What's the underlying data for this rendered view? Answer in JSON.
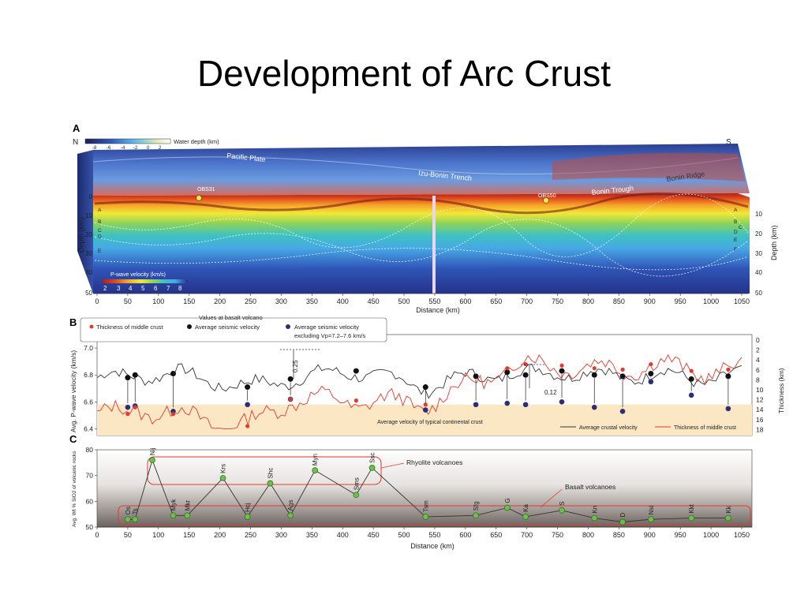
{
  "slide": {
    "title": "Development of Arc Crust"
  },
  "panel_a": {
    "letter": "A",
    "north": "N",
    "south": "S",
    "water_depth_label": "Water depth (km)",
    "water_depth_ticks": [
      "-8",
      "-6",
      "-4",
      "-2",
      "0",
      "2"
    ],
    "features": [
      "Pacific Plate",
      "Izu-Bonin Trench",
      "Bonin Ridge",
      "Bonin Trough",
      "OBS31",
      "OBS50"
    ],
    "layer_labels_left": [
      "A",
      "B",
      "C",
      "D",
      "E"
    ],
    "layer_labels_right": [
      "A",
      "B",
      "C",
      "D",
      "E",
      "F"
    ],
    "depth_label": "Depth (km)",
    "depth_ticks_left": [
      "0",
      "10",
      "20",
      "30",
      "40",
      "50"
    ],
    "depth_ticks_right": [
      "10",
      "20",
      "30",
      "40",
      "50"
    ],
    "velocity_legend_title": "P-wave velocity (km/s)",
    "velocity_ticks": [
      "2",
      "3",
      "4",
      "5",
      "6",
      "7",
      "8"
    ],
    "x_ticks": [
      "0",
      "50",
      "100",
      "150",
      "200",
      "250",
      "300",
      "350",
      "400",
      "450",
      "500",
      "550",
      "600",
      "650",
      "700",
      "750",
      "800",
      "850",
      "900",
      "950",
      "1000",
      "1050"
    ],
    "x_label": "Distance (km)"
  },
  "panel_b": {
    "letter": "B",
    "legend_header": "Values at basalt volcano",
    "legend_items": [
      "Thickness of middle crust",
      "Average seismic velocity",
      "Average seismic velocity",
      "excluding Vp=7.2–7.6 km/s"
    ],
    "y_left_label": "Avg. P-wave velocity (km/s)",
    "y_left_ticks": [
      "6.4",
      "6.6",
      "6.8",
      "7.0"
    ],
    "y_right_label": "Thickness (km)",
    "y_right_ticks": [
      "0",
      "2",
      "4",
      "6",
      "8",
      "10",
      "12",
      "14",
      "16",
      "18"
    ],
    "annotations": [
      "0.25",
      "0.12"
    ],
    "band_label": "Average velocity of typical continental crust",
    "line_legend": [
      "Average crustal velocity",
      "Thickness of middle crust"
    ]
  },
  "panel_c": {
    "letter": "C",
    "y_label": "Avg. Wt % SiO2 of volcanic rocks",
    "y_ticks": [
      "50",
      "60",
      "70",
      "80"
    ],
    "x_ticks": [
      "0",
      "50",
      "100",
      "150",
      "200",
      "250",
      "300",
      "350",
      "400",
      "450",
      "500",
      "550",
      "600",
      "650",
      "700",
      "750",
      "800",
      "850",
      "900",
      "950",
      "1000",
      "1050"
    ],
    "x_label": "Distance (km)",
    "rhyolite_label": "Rhyolite volcanoes",
    "basalt_label": "Basalt volcanoes"
  },
  "chart_data": [
    {
      "type": "line",
      "panel": "C",
      "xlabel": "Distance (km)",
      "ylabel": "Avg. Wt % SiO2 of volcanic rocks",
      "xlim": [
        0,
        1050
      ],
      "ylim": [
        50,
        80
      ],
      "points": [
        {
          "label": "Os",
          "x": 50,
          "y": 53
        },
        {
          "label": "Ts",
          "x": 62,
          "y": 53
        },
        {
          "label": "Nij",
          "x": 90,
          "y": 76
        },
        {
          "label": "Myk",
          "x": 124,
          "y": 54.5
        },
        {
          "label": "Mkr",
          "x": 147,
          "y": 54.5
        },
        {
          "label": "Krs",
          "x": 205,
          "y": 69
        },
        {
          "label": "Hcj",
          "x": 245,
          "y": 54
        },
        {
          "label": "Shc",
          "x": 282,
          "y": 67
        },
        {
          "label": "Ags",
          "x": 315,
          "y": 54.5
        },
        {
          "label": "Myn",
          "x": 355,
          "y": 72
        },
        {
          "label": "Sms",
          "x": 422,
          "y": 62.5
        },
        {
          "label": "Ssc",
          "x": 448,
          "y": 73
        },
        {
          "label": "Tsm",
          "x": 535,
          "y": 54
        },
        {
          "label": "Sfg",
          "x": 617,
          "y": 54.5
        },
        {
          "label": "G",
          "x": 668,
          "y": 57.5
        },
        {
          "label": "Ka",
          "x": 698,
          "y": 54
        },
        {
          "label": "S",
          "x": 757,
          "y": 56.5
        },
        {
          "label": "Kn",
          "x": 810,
          "y": 53.5
        },
        {
          "label": "D",
          "x": 856,
          "y": 52
        },
        {
          "label": "Nsi",
          "x": 902,
          "y": 53
        },
        {
          "label": "Kkt",
          "x": 968,
          "y": 53.5
        },
        {
          "label": "Kk",
          "x": 1028,
          "y": 53.5
        }
      ]
    },
    {
      "type": "scatter",
      "panel": "B",
      "xlabel": "Distance (km)",
      "ylabel": "Avg. P-wave velocity (km/s)",
      "xlim": [
        0,
        1050
      ],
      "ylim": [
        6.35,
        7.1
      ],
      "continental_band": [
        6.35,
        6.58
      ],
      "series": [
        {
          "name": "Average seismic velocity",
          "x": [
            50,
            62,
            124,
            245,
            315,
            422,
            535,
            617,
            668,
            698,
            757,
            810,
            856,
            902,
            968,
            1028
          ],
          "y": [
            6.78,
            6.8,
            6.81,
            6.71,
            6.77,
            6.83,
            6.71,
            6.79,
            6.82,
            6.8,
            6.83,
            6.8,
            6.79,
            6.81,
            6.77,
            6.79
          ]
        },
        {
          "name": "Average seismic velocity excluding Vp=7.2–7.6 km/s",
          "x": [
            50,
            62,
            124,
            245,
            315,
            535,
            617,
            668,
            698,
            757,
            810,
            856,
            902,
            968,
            1028
          ],
          "y": [
            6.56,
            6.57,
            6.53,
            6.58,
            6.62,
            6.54,
            6.58,
            6.59,
            6.58,
            6.6,
            6.56,
            6.53,
            6.75,
            6.65,
            6.55
          ]
        },
        {
          "name": "Thickness of middle crust",
          "x": [
            50,
            62,
            124,
            245,
            315,
            422,
            535,
            668,
            698,
            757,
            810,
            856,
            902,
            968,
            1028
          ],
          "y": [
            6.51,
            6.56,
            6.51,
            6.42,
            6.62,
            6.61,
            6.58,
            6.85,
            6.88,
            6.87,
            6.85,
            6.84,
            6.88,
            6.83,
            6.84
          ]
        }
      ]
    }
  ]
}
